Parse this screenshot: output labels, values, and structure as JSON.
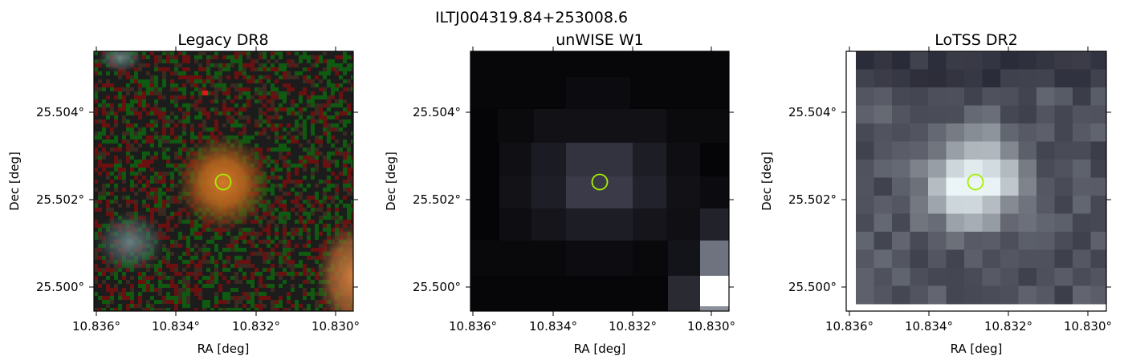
{
  "figure": {
    "suptitle": "ILTJ004319.84+253008.6"
  },
  "panels": [
    {
      "id": "legacy",
      "title": "Legacy DR8",
      "xlabel": "RA [deg]",
      "ylabel": "Dec [deg]",
      "xticks": [
        "10.836°",
        "10.834°",
        "10.832°",
        "10.830°"
      ],
      "yticks": [
        "25.504°",
        "25.502°",
        "25.500°"
      ],
      "image": "optical color cutout with noise; orange galaxy at center, faint blue-grey galaxies at top-left and left, orange source at lower-right edge"
    },
    {
      "id": "unwise",
      "title": "unWISE W1",
      "xlabel": "RA [deg]",
      "ylabel": "Dec [deg]",
      "xticks": [
        "10.836°",
        "10.834°",
        "10.832°",
        "10.830°"
      ],
      "yticks": [
        "25.504°",
        "25.502°",
        "25.500°"
      ],
      "image": "dark grey pixelated infrared cutout; faint source at center, bright saturated pixels at lower-right corner"
    },
    {
      "id": "lotss",
      "title": "LoTSS DR2",
      "xlabel": "RA [deg]",
      "ylabel": "Dec [deg]",
      "xticks": [
        "10.836°",
        "10.834°",
        "10.832°",
        "10.830°"
      ],
      "yticks": [
        "25.504°",
        "25.502°",
        "25.500°"
      ],
      "image": "blue-grey pixelated radio cutout; bright compact source at center"
    }
  ],
  "marker": {
    "shape": "circle",
    "color": "#a6f000"
  },
  "colors": {
    "legacy_noise": [
      "#1c1c1c",
      "#6b1010",
      "#0f5a10",
      "#3a2a20"
    ],
    "unwise_bg": "#050507",
    "lotss_bright": "#e8f4f2"
  }
}
